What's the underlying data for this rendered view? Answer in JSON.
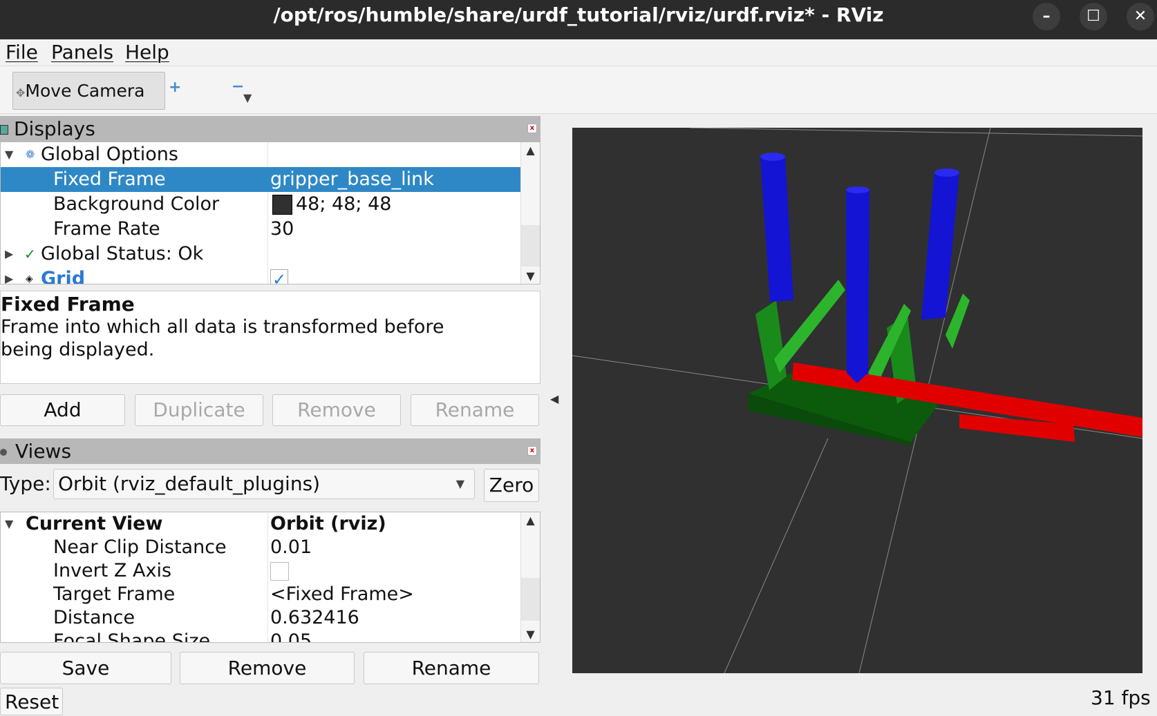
{
  "window": {
    "title": "/opt/ros/humble/share/urdf_tutorial/rviz/urdf.rviz* - RViz",
    "minimize": "–",
    "maximize": "☐",
    "close": "✕"
  },
  "menu": [
    {
      "label": "File"
    },
    {
      "label": "Panels"
    },
    {
      "label": "Help"
    }
  ],
  "toolbar": {
    "move_camera": "Move Camera",
    "add_tool": "+",
    "remove_tool": "−",
    "menu_arrow": "▼"
  },
  "displays": {
    "title": "Displays",
    "rows": [
      {
        "key": "Global Options",
        "value": "",
        "expanded": true
      },
      {
        "key": "Fixed Frame",
        "value": "gripper_base_link",
        "selected": true
      },
      {
        "key": "Background Color",
        "value": "48; 48; 48",
        "swatch": "#303030"
      },
      {
        "key": "Frame Rate",
        "value": "30"
      },
      {
        "key": "Global Status: Ok",
        "value": "",
        "status_color": "#1a8a1a"
      },
      {
        "key": "Grid",
        "value": "",
        "checked": true,
        "color": "#2a7ad0"
      }
    ],
    "description": {
      "title": "Fixed Frame",
      "text": "Frame into which all data is transformed before being displayed."
    },
    "buttons": {
      "add": "Add",
      "duplicate": "Duplicate",
      "remove": "Remove",
      "rename": "Rename"
    }
  },
  "views": {
    "title": "Views",
    "type_label": "Type:",
    "type_value": "Orbit (rviz_default_plugins)",
    "zero": "Zero",
    "rows": [
      {
        "key": "Current View",
        "value": "Orbit (rviz)"
      },
      {
        "key": "Near Clip Distance",
        "value": "0.01"
      },
      {
        "key": "Invert Z Axis",
        "value": "",
        "checked": false
      },
      {
        "key": "Target Frame",
        "value": "<Fixed Frame>"
      },
      {
        "key": "Distance",
        "value": "0.632416"
      },
      {
        "key": "Focal Shape Size",
        "value": "0.05"
      }
    ],
    "buttons": {
      "save": "Save",
      "remove": "Remove",
      "rename": "Rename"
    }
  },
  "reset": "Reset",
  "fps": "31 fps",
  "viewport": {
    "background": "#303030"
  }
}
